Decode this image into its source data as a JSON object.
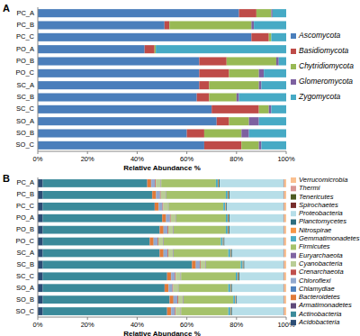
{
  "chart_data": [
    {
      "type": "bar",
      "title": "A",
      "orientation": "horizontal",
      "stacked": true,
      "grid": false,
      "legend": "right",
      "xlabel": "Relative Abundance %",
      "categories": [
        "PC_A",
        "PC_B",
        "PC_C",
        "PO_A",
        "PO_B",
        "PO_C",
        "SC_A",
        "SC_B",
        "SC_C",
        "SO_A",
        "SO_B",
        "SO_C"
      ],
      "xlim": [
        0,
        100
      ],
      "xticks": [
        {
          "value": 0,
          "label": "0%"
        },
        {
          "value": 20,
          "label": "20%"
        },
        {
          "value": 40,
          "label": "40%"
        },
        {
          "value": 60,
          "label": "60%"
        },
        {
          "value": 80,
          "label": "80%"
        },
        {
          "value": 100,
          "label": "100%"
        }
      ],
      "series": [
        {
          "name": "Ascomycota",
          "color": "#4a7ebb",
          "values": [
            81,
            51,
            86,
            43,
            65,
            65,
            65,
            64,
            70,
            72,
            60,
            67
          ]
        },
        {
          "name": "Basidiomycota",
          "color": "#be4b48",
          "values": [
            7,
            2,
            7,
            4,
            11,
            12,
            4,
            5,
            19,
            5,
            7,
            15
          ]
        },
        {
          "name": "Chytridiomycota",
          "color": "#98b954",
          "values": [
            6,
            33,
            1,
            0.5,
            20,
            12,
            20,
            11,
            4,
            8,
            15,
            7
          ]
        },
        {
          "name": "Glomeromycota",
          "color": "#7d60a0",
          "values": [
            0.5,
            1,
            0,
            0,
            1,
            2,
            1,
            1,
            1,
            4,
            3,
            1
          ]
        },
        {
          "name": "Zygomycota",
          "color": "#46aac5",
          "values": [
            5.5,
            13,
            6,
            52.5,
            3,
            9,
            10,
            19,
            6,
            11,
            15,
            10
          ]
        }
      ]
    },
    {
      "type": "bar",
      "title": "B",
      "orientation": "horizontal",
      "stacked": true,
      "grid": false,
      "legend": "right",
      "xlabel": "Relative Abundance %",
      "categories": [
        "PC_A",
        "PC_B",
        "PC_C",
        "PO_A",
        "PO_B",
        "PO_C",
        "SC_A",
        "SC_B",
        "SC_C",
        "SO_A",
        "SO_B",
        "SO_C"
      ],
      "xlim": [
        0,
        100
      ],
      "xticks": [
        {
          "value": 0,
          "label": "0%"
        },
        {
          "value": 20,
          "label": "20%"
        },
        {
          "value": 40,
          "label": "40%"
        },
        {
          "value": 60,
          "label": "60%"
        },
        {
          "value": 80,
          "label": "80%"
        },
        {
          "value": 100,
          "label": "100%"
        }
      ],
      "series": [
        {
          "name": "Acidobacteria",
          "color": "#2c4d75",
          "values": [
            2,
            2,
            2,
            2,
            2,
            2,
            2,
            2,
            2,
            2,
            2,
            2
          ]
        },
        {
          "name": "Actinobacteria",
          "color": "#3a8a9a",
          "values": [
            42,
            44,
            45,
            48,
            47,
            43,
            47,
            60,
            50,
            49,
            51,
            50
          ]
        },
        {
          "name": "Armatimonadetes",
          "color": "#5f497a",
          "values": [
            0.1,
            0.1,
            0.1,
            0.1,
            0.1,
            0.1,
            0.1,
            0.1,
            0.1,
            0.1,
            0.1,
            0.1
          ]
        },
        {
          "name": "Bacteroidetes",
          "color": "#e07b39",
          "values": [
            1.5,
            1.5,
            1.5,
            1.5,
            1.5,
            1.5,
            1.5,
            1.5,
            1.5,
            1.5,
            1.5,
            1.5
          ]
        },
        {
          "name": "Chlamydiae",
          "color": "#4f81bd",
          "values": [
            0.1,
            0.1,
            0.1,
            0.1,
            0.1,
            0.1,
            0.1,
            0.1,
            0.1,
            0.1,
            0.1,
            0.1
          ]
        },
        {
          "name": "Chloroflexi",
          "color": "#93a9cf",
          "values": [
            1.5,
            1.5,
            1.5,
            1.5,
            1.5,
            1.5,
            1.5,
            1.5,
            1.5,
            1.5,
            1.5,
            1.5
          ]
        },
        {
          "name": "Crenarchaeota",
          "color": "#c0504d",
          "values": [
            0.3,
            0.3,
            0.3,
            0.3,
            0.3,
            0.3,
            0.3,
            0.3,
            0.3,
            0.3,
            0.3,
            0.3
          ]
        },
        {
          "name": "Cyanobacteria",
          "color": "#b9cd96",
          "values": [
            2,
            2,
            2,
            2,
            2,
            2,
            2,
            2,
            2,
            2,
            2,
            2
          ]
        },
        {
          "name": "Euryarchaeota",
          "color": "#8064a2",
          "values": [
            0.2,
            0.2,
            0.2,
            0.2,
            0.2,
            0.2,
            0.2,
            0.2,
            0.2,
            0.2,
            0.2,
            0.2
          ]
        },
        {
          "name": "Firmicutes",
          "color": "#a5c26b",
          "values": [
            22,
            24,
            22,
            20,
            21,
            23,
            22,
            14,
            22,
            20,
            20,
            19
          ]
        },
        {
          "name": "Gemmatimonadetes",
          "color": "#4bacc6",
          "values": [
            0.8,
            0.8,
            0.8,
            0.8,
            0.8,
            0.8,
            0.8,
            0.8,
            0.8,
            0.8,
            0.8,
            0.8
          ]
        },
        {
          "name": "Nitrospirae",
          "color": "#f79646",
          "values": [
            0.3,
            0.3,
            0.3,
            0.3,
            0.3,
            0.3,
            0.3,
            0.3,
            0.3,
            0.3,
            0.3,
            0.3
          ]
        },
        {
          "name": "Planctomycetes",
          "color": "#2c6d7e",
          "values": [
            0.4,
            0.4,
            0.4,
            0.4,
            0.4,
            0.4,
            0.4,
            0.4,
            0.4,
            0.4,
            0.4,
            0.4
          ]
        },
        {
          "name": "Proteobacteria",
          "color": "#b7dee8",
          "values": [
            25.7,
            21.7,
            22.7,
            21.7,
            21.7,
            23.7,
            20.7,
            15.7,
            17.7,
            20.7,
            18.7,
            20.7
          ]
        },
        {
          "name": "Spirochaetes",
          "color": "#772c2a",
          "values": [
            0.1,
            0.1,
            0.1,
            0.1,
            0.1,
            0.1,
            0.1,
            0.1,
            0.1,
            0.1,
            0.1,
            0.1
          ]
        },
        {
          "name": "Tenericutes",
          "color": "#4d5b22",
          "values": [
            0.1,
            0.1,
            0.1,
            0.1,
            0.1,
            0.1,
            0.1,
            0.1,
            0.1,
            0.1,
            0.1,
            0.1
          ]
        },
        {
          "name": "Thermi",
          "color": "#d99694",
          "values": [
            0.2,
            0.2,
            0.2,
            0.2,
            0.2,
            0.2,
            0.2,
            0.2,
            0.2,
            0.2,
            0.2,
            0.2
          ]
        },
        {
          "name": "Verrucomicrobia",
          "color": "#fac090",
          "values": [
            0.7,
            0.7,
            0.7,
            0.7,
            0.7,
            0.7,
            0.7,
            0.7,
            0.7,
            0.7,
            0.7,
            0.7
          ]
        }
      ]
    }
  ]
}
